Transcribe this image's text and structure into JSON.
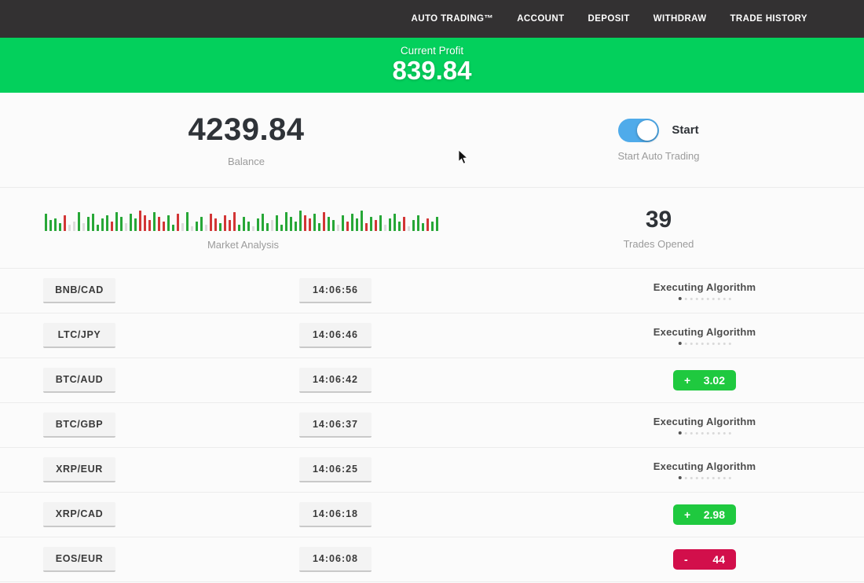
{
  "navbar": {
    "items": [
      {
        "label": "AUTO TRADING™"
      },
      {
        "label": "ACCOUNT"
      },
      {
        "label": "DEPOSIT"
      },
      {
        "label": "WITHDRAW"
      },
      {
        "label": "TRADE HISTORY"
      }
    ]
  },
  "profit_banner": {
    "label": "Current Profit",
    "value": "839.84",
    "bg": "#03d05c"
  },
  "summary": {
    "balance": {
      "value": "4239.84",
      "label": "Balance"
    },
    "auto_trading": {
      "toggle_label": "Start",
      "caption": "Start Auto Trading",
      "toggle_on": true,
      "toggle_color": "#4fabea"
    },
    "trades_opened": {
      "value": "39",
      "label": "Trades Opened"
    }
  },
  "chart_data": {
    "type": "bar",
    "title": "Market Analysis",
    "note": "decorative market-analysis sparkline of green/red/neutral ticks, heights in px",
    "colors": {
      "g": "#27a737",
      "r": "#d23535",
      "n": "#dcdcdc"
    },
    "bars": [
      [
        22,
        "g"
      ],
      [
        14,
        "g"
      ],
      [
        16,
        "g"
      ],
      [
        10,
        "g"
      ],
      [
        20,
        "r"
      ],
      [
        8,
        "n"
      ],
      [
        12,
        "n"
      ],
      [
        24,
        "g"
      ],
      [
        10,
        "n"
      ],
      [
        18,
        "g"
      ],
      [
        22,
        "g"
      ],
      [
        8,
        "g"
      ],
      [
        16,
        "g"
      ],
      [
        20,
        "g"
      ],
      [
        12,
        "r"
      ],
      [
        24,
        "g"
      ],
      [
        18,
        "g"
      ],
      [
        10,
        "n"
      ],
      [
        22,
        "g"
      ],
      [
        16,
        "g"
      ],
      [
        26,
        "r"
      ],
      [
        20,
        "r"
      ],
      [
        14,
        "r"
      ],
      [
        24,
        "g"
      ],
      [
        18,
        "r"
      ],
      [
        12,
        "r"
      ],
      [
        20,
        "g"
      ],
      [
        8,
        "g"
      ],
      [
        22,
        "r"
      ],
      [
        10,
        "n"
      ],
      [
        24,
        "g"
      ],
      [
        6,
        "n"
      ],
      [
        12,
        "g"
      ],
      [
        18,
        "g"
      ],
      [
        8,
        "n"
      ],
      [
        22,
        "r"
      ],
      [
        16,
        "r"
      ],
      [
        10,
        "g"
      ],
      [
        20,
        "r"
      ],
      [
        14,
        "r"
      ],
      [
        24,
        "r"
      ],
      [
        8,
        "g"
      ],
      [
        18,
        "g"
      ],
      [
        12,
        "g"
      ],
      [
        6,
        "n"
      ],
      [
        16,
        "g"
      ],
      [
        22,
        "g"
      ],
      [
        10,
        "g"
      ],
      [
        14,
        "n"
      ],
      [
        20,
        "g"
      ],
      [
        8,
        "g"
      ],
      [
        24,
        "g"
      ],
      [
        18,
        "g"
      ],
      [
        12,
        "g"
      ],
      [
        26,
        "g"
      ],
      [
        20,
        "r"
      ],
      [
        16,
        "r"
      ],
      [
        22,
        "g"
      ],
      [
        10,
        "g"
      ],
      [
        24,
        "r"
      ],
      [
        18,
        "g"
      ],
      [
        14,
        "g"
      ],
      [
        8,
        "n"
      ],
      [
        20,
        "g"
      ],
      [
        12,
        "r"
      ],
      [
        22,
        "g"
      ],
      [
        16,
        "g"
      ],
      [
        26,
        "g"
      ],
      [
        10,
        "r"
      ],
      [
        18,
        "g"
      ],
      [
        14,
        "r"
      ],
      [
        20,
        "g"
      ],
      [
        8,
        "n"
      ],
      [
        16,
        "g"
      ],
      [
        22,
        "g"
      ],
      [
        12,
        "g"
      ],
      [
        18,
        "r"
      ],
      [
        6,
        "n"
      ],
      [
        14,
        "g"
      ],
      [
        20,
        "g"
      ],
      [
        10,
        "g"
      ],
      [
        16,
        "r"
      ],
      [
        12,
        "g"
      ],
      [
        18,
        "g"
      ]
    ]
  },
  "market_analysis_label": "Market Analysis",
  "trades": {
    "executing_dots": {
      "count": 10,
      "active_index": 0
    },
    "rows": [
      {
        "pair": "BNB/CAD",
        "time": "14:06:56",
        "status": {
          "type": "executing",
          "label": "Executing Algorithm"
        }
      },
      {
        "pair": "LTC/JPY",
        "time": "14:06:46",
        "status": {
          "type": "executing",
          "label": "Executing Algorithm"
        }
      },
      {
        "pair": "BTC/AUD",
        "time": "14:06:42",
        "status": {
          "type": "result",
          "sign": "+",
          "value": "3.02",
          "color": "#1fc93f"
        }
      },
      {
        "pair": "BTC/GBP",
        "time": "14:06:37",
        "status": {
          "type": "executing",
          "label": "Executing Algorithm"
        }
      },
      {
        "pair": "XRP/EUR",
        "time": "14:06:25",
        "status": {
          "type": "executing",
          "label": "Executing Algorithm"
        }
      },
      {
        "pair": "XRP/CAD",
        "time": "14:06:18",
        "status": {
          "type": "result",
          "sign": "+",
          "value": "2.98",
          "color": "#1fc93f"
        }
      },
      {
        "pair": "EOS/EUR",
        "time": "14:06:08",
        "status": {
          "type": "result",
          "sign": "-",
          "value": "44",
          "color": "#d20f4b"
        }
      }
    ]
  },
  "colors": {
    "navbar_bg": "#333132",
    "banner_green": "#03d05c",
    "toggle_blue": "#4fabea",
    "profit_green": "#1fc93f",
    "loss_red": "#d20f4b"
  }
}
